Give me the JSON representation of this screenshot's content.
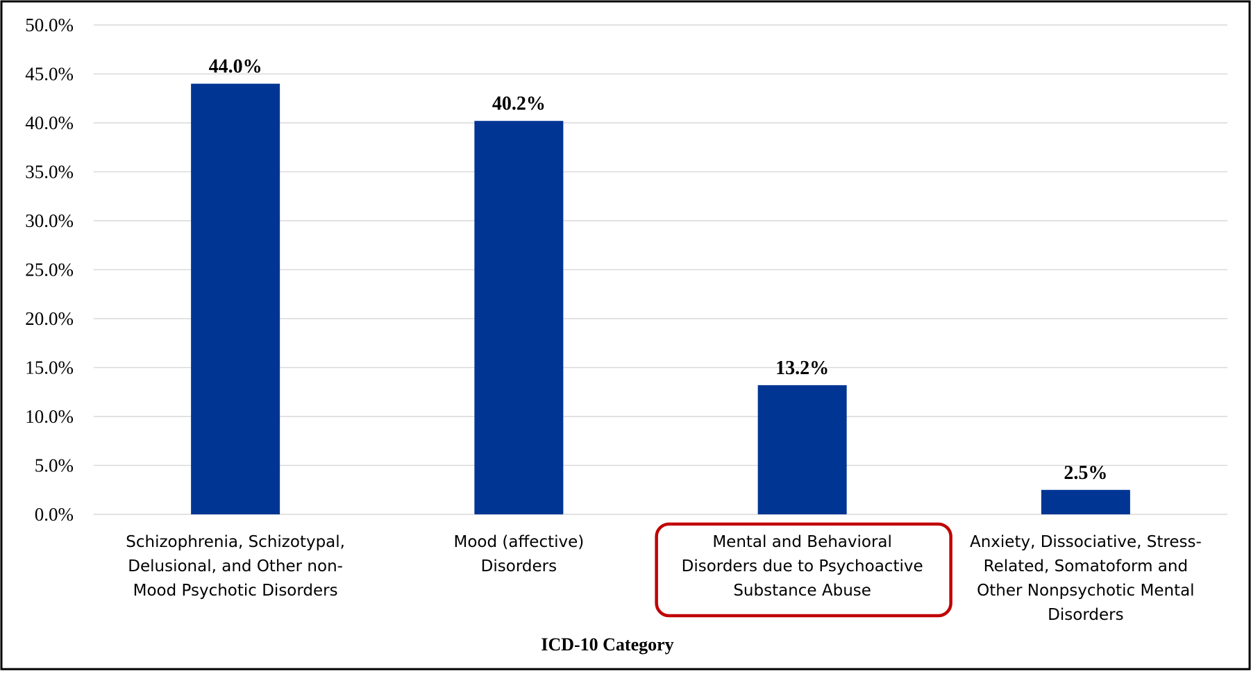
{
  "chart_data": {
    "type": "bar",
    "categories": [
      "Schizophrenia, Schizotypal, Delusional, and Other non-Mood Psychotic Disorders",
      "Mood (affective) Disorders",
      "Mental and Behavioral Disorders due to Psychoactive Substance Abuse",
      "Anxiety, Dissociative, Stress-Related, Somatoform and Other Nonpsychotic Mental Disorders"
    ],
    "category_label_lines": [
      [
        "Schizophrenia, Schizotypal,",
        "Delusional, and Other non-",
        "Mood Psychotic Disorders"
      ],
      [
        "Mood (affective)",
        "Disorders"
      ],
      [
        "Mental and Behavioral",
        "Disorders due to Psychoactive",
        "Substance Abuse"
      ],
      [
        "Anxiety, Dissociative, Stress-",
        "Related, Somatoform and",
        "Other Nonpsychotic Mental",
        "Disorders"
      ]
    ],
    "values": [
      44.0,
      40.2,
      13.2,
      2.5
    ],
    "data_labels": [
      "44.0%",
      "40.2%",
      "13.2%",
      "2.5%"
    ],
    "xlabel": "ICD-10 Category",
    "ylabel": "",
    "ylim": [
      0,
      50
    ],
    "yticks": [
      0,
      5,
      10,
      15,
      20,
      25,
      30,
      35,
      40,
      45,
      50
    ],
    "ytick_labels": [
      "0.0%",
      "5.0%",
      "10.0%",
      "15.0%",
      "20.0%",
      "25.0%",
      "30.0%",
      "35.0%",
      "40.0%",
      "45.0%",
      "50.0%"
    ],
    "grid": true,
    "legend": "none",
    "highlighted_category_index": 2,
    "colors": {
      "bar": "#003594",
      "grid": "#d9d9d9",
      "highlight_box": "#c00000",
      "frame": "#000000"
    }
  }
}
